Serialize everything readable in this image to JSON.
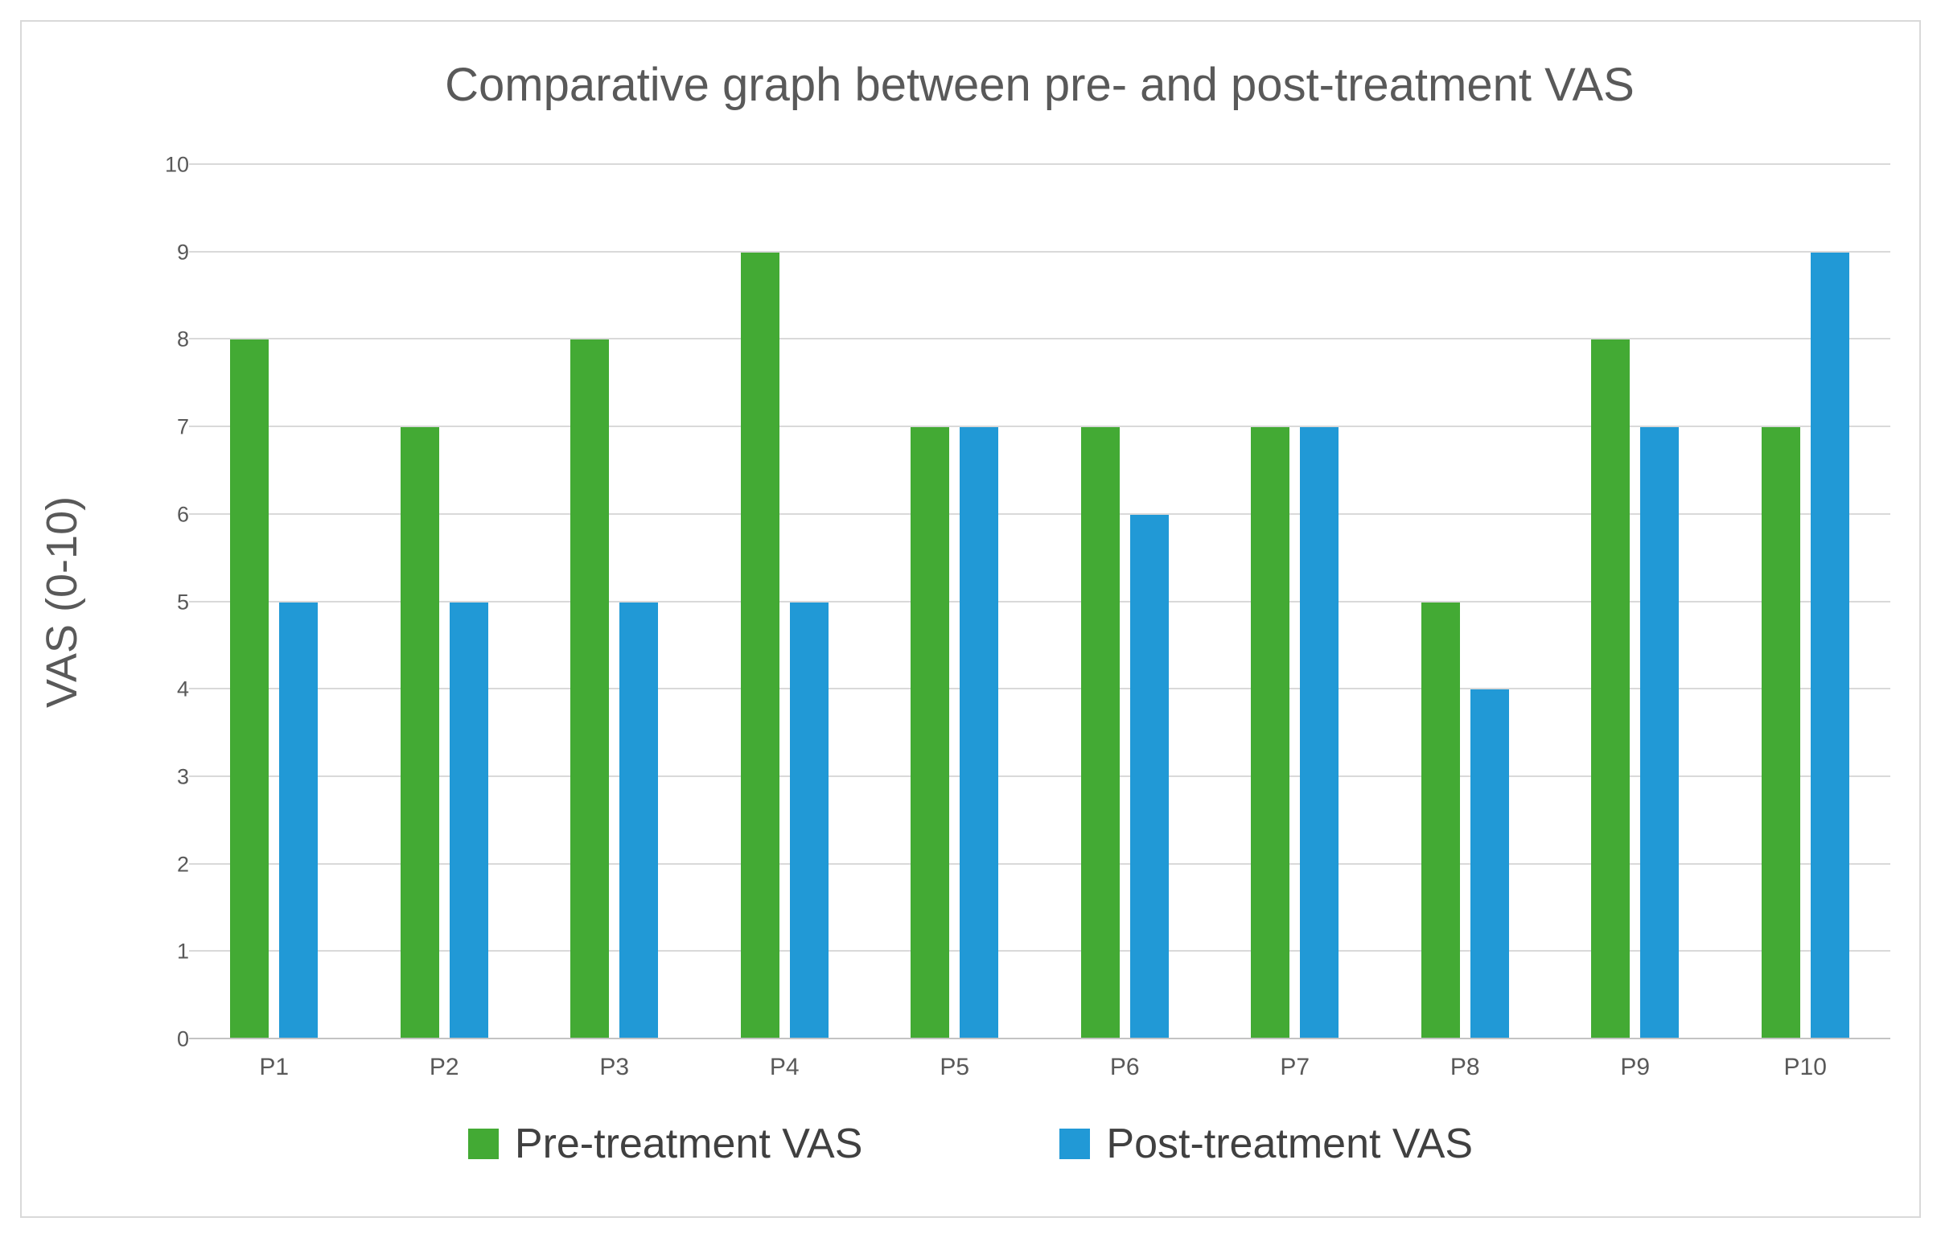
{
  "chart_data": {
    "type": "bar",
    "title": "Comparative graph between pre- and post-treatment VAS",
    "ylabel": "VAS (0-10)",
    "xlabel": "",
    "categories": [
      "P1",
      "P2",
      "P3",
      "P4",
      "P5",
      "P6",
      "P7",
      "P8",
      "P9",
      "P10"
    ],
    "series": [
      {
        "name": "Pre-treatment VAS",
        "color": "#43aa34",
        "values": [
          8,
          7,
          8,
          9,
          7,
          7,
          7,
          5,
          8,
          7
        ]
      },
      {
        "name": "Post-treatment VAS",
        "color": "#2199d6",
        "values": [
          5,
          5,
          5,
          5,
          7,
          6,
          7,
          4,
          7,
          9
        ]
      }
    ],
    "ylim": [
      0,
      10
    ],
    "ytick_step": 1,
    "yticks": [
      0,
      1,
      2,
      3,
      4,
      5,
      6,
      7,
      8,
      9,
      10
    ],
    "grid": "horizontal",
    "legend_position": "bottom"
  },
  "colors": {
    "background": "#ffffff",
    "frame_border": "#d9d9d9",
    "gridline": "#d9d9d9",
    "baseline": "#c3c3c3",
    "title_text": "#595959",
    "axis_text": "#595959",
    "legend_text": "#404040"
  }
}
